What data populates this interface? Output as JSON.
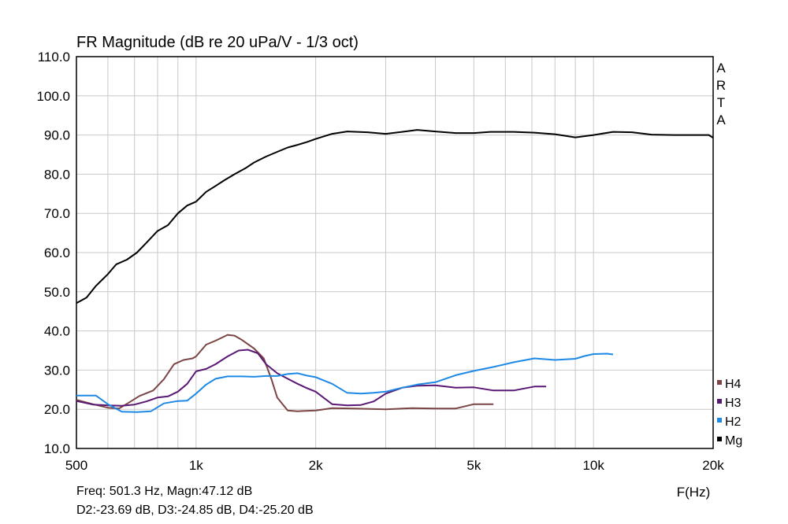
{
  "chart_data": {
    "type": "line",
    "title": "FR Magnitude (dB re 20 uPa/V - 1/3 oct)",
    "xlabel": "F(Hz)",
    "ylabel": "",
    "x_scale": "log",
    "xlim": [
      500,
      20000
    ],
    "ylim": [
      10,
      110
    ],
    "grid": true,
    "y_ticks": [
      "10.0",
      "20.0",
      "30.0",
      "40.0",
      "50.0",
      "60.0",
      "70.0",
      "80.0",
      "90.0",
      "100.0",
      "110.0"
    ],
    "x_ticks": [
      {
        "value": 500,
        "label": "500"
      },
      {
        "value": 1000,
        "label": "1k"
      },
      {
        "value": 2000,
        "label": "2k"
      },
      {
        "value": 5000,
        "label": "5k"
      },
      {
        "value": 10000,
        "label": "10k"
      },
      {
        "value": 20000,
        "label": "20k"
      }
    ],
    "watermark": [
      "A",
      "R",
      "T",
      "A"
    ],
    "legend_position": "bottom-right",
    "series": [
      {
        "name": "Mg",
        "color": "#000000",
        "points": [
          [
            500,
            47.1
          ],
          [
            530,
            48.5
          ],
          [
            560,
            51.5
          ],
          [
            600,
            54.5
          ],
          [
            630,
            57
          ],
          [
            670,
            58.2
          ],
          [
            710,
            60
          ],
          [
            750,
            62.5
          ],
          [
            800,
            65.5
          ],
          [
            850,
            67
          ],
          [
            900,
            70
          ],
          [
            950,
            72
          ],
          [
            1000,
            73
          ],
          [
            1060,
            75.5
          ],
          [
            1120,
            77
          ],
          [
            1180,
            78.5
          ],
          [
            1250,
            80
          ],
          [
            1330,
            81.5
          ],
          [
            1400,
            83
          ],
          [
            1500,
            84.5
          ],
          [
            1600,
            85.7
          ],
          [
            1700,
            86.8
          ],
          [
            1800,
            87.5
          ],
          [
            1900,
            88.2
          ],
          [
            2000,
            89
          ],
          [
            2200,
            90.3
          ],
          [
            2400,
            90.9
          ],
          [
            2700,
            90.7
          ],
          [
            3000,
            90.3
          ],
          [
            3300,
            90.8
          ],
          [
            3600,
            91.3
          ],
          [
            4000,
            90.9
          ],
          [
            4500,
            90.5
          ],
          [
            5000,
            90.5
          ],
          [
            5500,
            90.8
          ],
          [
            6300,
            90.8
          ],
          [
            7100,
            90.6
          ],
          [
            8000,
            90.2
          ],
          [
            9000,
            89.4
          ],
          [
            10000,
            90
          ],
          [
            11200,
            90.8
          ],
          [
            12500,
            90.7
          ],
          [
            14000,
            90.1
          ],
          [
            16000,
            90.0
          ],
          [
            18000,
            90.0
          ],
          [
            19500,
            90.0
          ],
          [
            20000,
            89.3
          ]
        ]
      },
      {
        "name": "H2",
        "color": "#1e88e5",
        "points": [
          [
            500,
            23.5
          ],
          [
            560,
            23.5
          ],
          [
            600,
            21.3
          ],
          [
            650,
            19.4
          ],
          [
            710,
            19.3
          ],
          [
            770,
            19.5
          ],
          [
            830,
            21.5
          ],
          [
            900,
            22.1
          ],
          [
            950,
            22.2
          ],
          [
            1000,
            24
          ],
          [
            1060,
            26.3
          ],
          [
            1120,
            27.8
          ],
          [
            1200,
            28.4
          ],
          [
            1300,
            28.4
          ],
          [
            1400,
            28.3
          ],
          [
            1500,
            28.5
          ],
          [
            1600,
            28.5
          ],
          [
            1700,
            29
          ],
          [
            1800,
            29.2
          ],
          [
            1900,
            28.6
          ],
          [
            2000,
            28.2
          ],
          [
            2200,
            26.5
          ],
          [
            2400,
            24.2
          ],
          [
            2600,
            24
          ],
          [
            2800,
            24.2
          ],
          [
            3000,
            24.5
          ],
          [
            3300,
            25.5
          ],
          [
            3600,
            26.3
          ],
          [
            4000,
            26.9
          ],
          [
            4500,
            28.7
          ],
          [
            5000,
            29.8
          ],
          [
            5600,
            30.8
          ],
          [
            6300,
            32
          ],
          [
            7100,
            33
          ],
          [
            8000,
            32.6
          ],
          [
            9000,
            32.9
          ],
          [
            9500,
            33.6
          ],
          [
            10000,
            34.1
          ],
          [
            10800,
            34.2
          ],
          [
            11200,
            34.0
          ]
        ]
      },
      {
        "name": "H3",
        "color": "#5a1875",
        "points": [
          [
            500,
            22.1
          ],
          [
            550,
            21.2
          ],
          [
            600,
            21
          ],
          [
            650,
            20.9
          ],
          [
            700,
            21.2
          ],
          [
            750,
            22
          ],
          [
            800,
            23
          ],
          [
            850,
            23.3
          ],
          [
            900,
            24.5
          ],
          [
            950,
            26.5
          ],
          [
            1000,
            29.7
          ],
          [
            1060,
            30.3
          ],
          [
            1120,
            31.5
          ],
          [
            1200,
            33.5
          ],
          [
            1280,
            35
          ],
          [
            1350,
            35.2
          ],
          [
            1430,
            34.3
          ],
          [
            1500,
            31.5
          ],
          [
            1600,
            29.2
          ],
          [
            1700,
            27.8
          ],
          [
            1800,
            26.5
          ],
          [
            1900,
            25.4
          ],
          [
            2000,
            24.5
          ],
          [
            2200,
            21.3
          ],
          [
            2400,
            21
          ],
          [
            2600,
            21.1
          ],
          [
            2800,
            22
          ],
          [
            3000,
            24
          ],
          [
            3300,
            25.5
          ],
          [
            3600,
            26
          ],
          [
            4000,
            26.1
          ],
          [
            4500,
            25.5
          ],
          [
            5000,
            25.6
          ],
          [
            5600,
            24.8
          ],
          [
            6300,
            24.8
          ],
          [
            7100,
            25.8
          ],
          [
            7600,
            25.8
          ]
        ]
      },
      {
        "name": "H4",
        "color": "#7b4545",
        "points": [
          [
            500,
            22.4
          ],
          [
            550,
            21.3
          ],
          [
            600,
            20.4
          ],
          [
            640,
            20.2
          ],
          [
            680,
            21.8
          ],
          [
            720,
            23.4
          ],
          [
            780,
            24.8
          ],
          [
            830,
            27.7
          ],
          [
            880,
            31.5
          ],
          [
            930,
            32.6
          ],
          [
            980,
            33
          ],
          [
            1000,
            33.5
          ],
          [
            1060,
            36.5
          ],
          [
            1120,
            37.5
          ],
          [
            1200,
            39
          ],
          [
            1250,
            38.8
          ],
          [
            1300,
            37.8
          ],
          [
            1400,
            35.5
          ],
          [
            1480,
            33
          ],
          [
            1550,
            27.5
          ],
          [
            1600,
            23
          ],
          [
            1700,
            19.7
          ],
          [
            1800,
            19.5
          ],
          [
            2000,
            19.7
          ],
          [
            2200,
            20.3
          ],
          [
            2500,
            20.2
          ],
          [
            3000,
            20
          ],
          [
            3500,
            20.3
          ],
          [
            4000,
            20.2
          ],
          [
            4500,
            20.2
          ],
          [
            5000,
            21.3
          ],
          [
            5600,
            21.3
          ]
        ]
      }
    ],
    "legend": [
      {
        "name": "H4",
        "color": "#7b4545"
      },
      {
        "name": "H3",
        "color": "#5a1875"
      },
      {
        "name": "H2",
        "color": "#1e88e5"
      },
      {
        "name": "Mg",
        "color": "#000000"
      }
    ]
  },
  "readout": {
    "line1": "Freq: 501.3 Hz, Magn:47.12 dB",
    "line2": "D2:-23.69 dB, D3:-24.85 dB, D4:-25.20 dB"
  }
}
